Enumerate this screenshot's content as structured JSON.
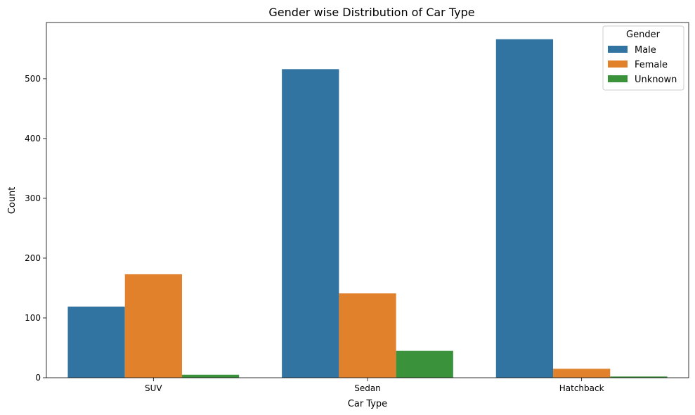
{
  "chart_data": {
    "type": "bar",
    "title": "Gender wise Distribution of Car Type",
    "xlabel": "Car Type",
    "ylabel": "Count",
    "categories": [
      "SUV",
      "Sedan",
      "Hatchback"
    ],
    "series": [
      {
        "name": "Male",
        "color": "#3274a1",
        "values": [
          119,
          516,
          566
        ]
      },
      {
        "name": "Female",
        "color": "#e1812c",
        "values": [
          173,
          141,
          15
        ]
      },
      {
        "name": "Unknown",
        "color": "#3a923a",
        "values": [
          5,
          45,
          2
        ]
      }
    ],
    "ylim": [
      0,
      594
    ],
    "yticks": [
      0,
      100,
      200,
      300,
      400,
      500
    ],
    "legend": {
      "title": "Gender",
      "position": "top-right"
    },
    "grid": false
  }
}
